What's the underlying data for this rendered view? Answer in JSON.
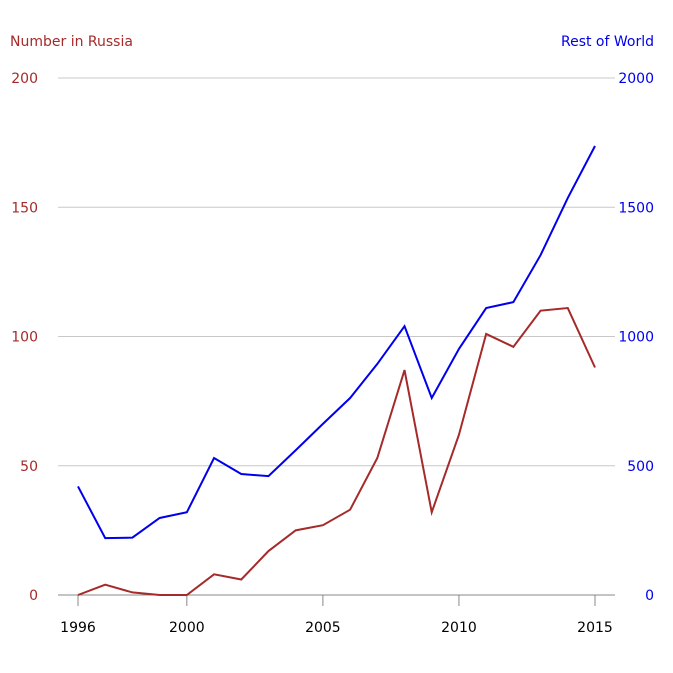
{
  "chart_data": {
    "type": "line",
    "title": "",
    "x": [
      1996,
      1997,
      1998,
      1999,
      2000,
      2001,
      2002,
      2003,
      2004,
      2005,
      2006,
      2007,
      2008,
      2009,
      2010,
      2011,
      2012,
      2013,
      2014,
      2015
    ],
    "xticks": [
      "1996",
      "2000",
      "2005",
      "2010",
      "2015"
    ],
    "xlim": [
      1996,
      2015
    ],
    "left_axis": {
      "label": "Number in Russia",
      "ylim": [
        0,
        200
      ],
      "ticks": [
        "0",
        "50",
        "100",
        "150",
        "200"
      ],
      "color": "#a52a2a"
    },
    "right_axis": {
      "label": "Rest of World",
      "ylim": [
        0,
        2000
      ],
      "ticks": [
        "0",
        "500",
        "1000",
        "1500",
        "2000"
      ],
      "color": "#0000ee"
    },
    "series": [
      {
        "name": "Number in Russia",
        "axis": "left",
        "color": "#a52a2a",
        "values": [
          0,
          4,
          1,
          0,
          0,
          8,
          6,
          17,
          25,
          27,
          33,
          53,
          87,
          32,
          62,
          101,
          96,
          110,
          111,
          88
        ]
      },
      {
        "name": "Rest of World",
        "axis": "right",
        "color": "#0000ee",
        "values": [
          420,
          220,
          222,
          298,
          320,
          530,
          468,
          460,
          560,
          662,
          762,
          894,
          1040,
          762,
          952,
          1110,
          1133,
          1315,
          1536,
          1737
        ]
      }
    ],
    "grid": true
  }
}
